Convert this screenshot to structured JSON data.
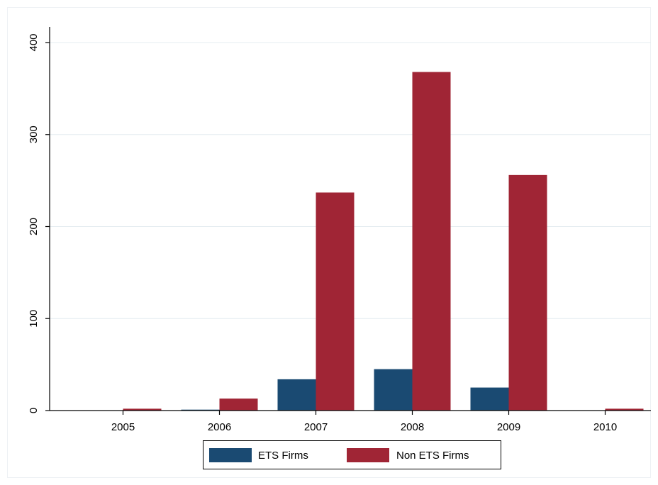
{
  "chart_data": {
    "type": "bar",
    "categories": [
      "2005",
      "2006",
      "2007",
      "2008",
      "2009",
      "2010"
    ],
    "series": [
      {
        "name": "ETS Firms",
        "values": [
          0,
          1,
          34,
          45,
          25,
          0
        ],
        "color": "#1a4a72"
      },
      {
        "name": "Non ETS Firms",
        "values": [
          2,
          13,
          237,
          368,
          256,
          2
        ],
        "color": "#a02535"
      }
    ],
    "title": "",
    "xlabel": "",
    "ylabel": "",
    "ylim": [
      0,
      400
    ],
    "yticks": [
      0,
      100,
      200,
      300,
      400
    ],
    "grid": true,
    "legend_position": "bottom"
  }
}
